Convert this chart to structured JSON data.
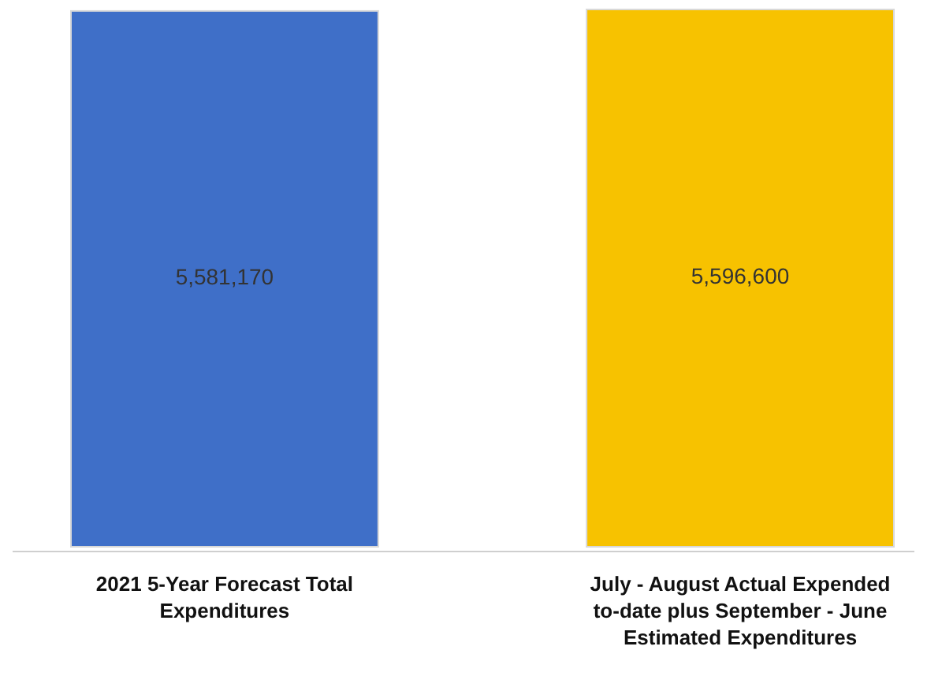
{
  "chart_data": {
    "type": "bar",
    "categories": [
      "2021 5-Year Forecast Total Expenditures",
      "July - August Actual Expended to-date plus September - June Estimated Expenditures"
    ],
    "values": [
      5581170,
      5596600
    ],
    "colors": [
      "#3f6fc8",
      "#f7c200"
    ],
    "value_labels": [
      "5,581,170",
      "5,596,600"
    ]
  }
}
